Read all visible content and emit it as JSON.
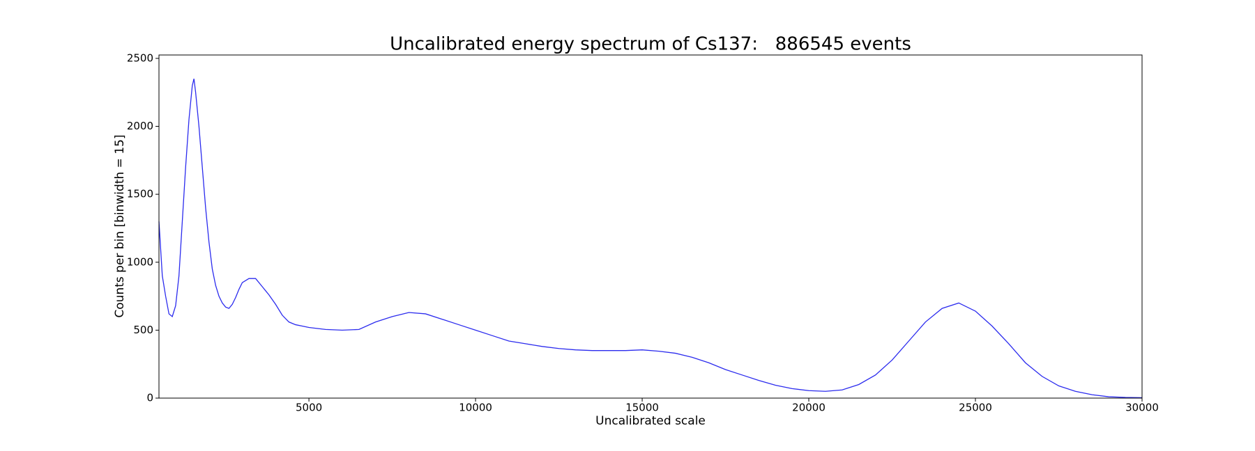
{
  "chart_data": {
    "type": "line",
    "title": "Uncalibrated energy spectrum of Cs137:   886545 events",
    "x_label": "Uncalibrated scale",
    "y_label": "Counts per bin [binwidth = 15]",
    "xlim": [
      500,
      30000
    ],
    "ylim": [
      0,
      2525
    ],
    "xticks": [
      5000,
      10000,
      15000,
      20000,
      25000,
      30000
    ],
    "yticks": [
      0,
      500,
      1000,
      1500,
      2000,
      2500
    ],
    "grid": false,
    "series": [
      {
        "name": "Cs137",
        "color": "#2b2bee",
        "x": [
          500,
          600,
          700,
          800,
          900,
          1000,
          1100,
          1200,
          1300,
          1400,
          1500,
          1550,
          1600,
          1700,
          1800,
          1900,
          2000,
          2100,
          2200,
          2300,
          2400,
          2500,
          2600,
          2700,
          2800,
          2900,
          3000,
          3200,
          3400,
          3600,
          3800,
          4000,
          4200,
          4400,
          4600,
          4800,
          5000,
          5500,
          6000,
          6500,
          7000,
          7500,
          8000,
          8500,
          9000,
          9500,
          10000,
          10500,
          11000,
          11500,
          12000,
          12500,
          13000,
          13500,
          14000,
          14500,
          15000,
          15500,
          16000,
          16500,
          17000,
          17500,
          18000,
          18500,
          19000,
          19500,
          20000,
          20500,
          21000,
          21500,
          22000,
          22500,
          23000,
          23500,
          24000,
          24500,
          25000,
          25500,
          26000,
          26500,
          27000,
          27500,
          28000,
          28500,
          29000,
          29500,
          30000
        ],
        "values": [
          1300,
          900,
          750,
          620,
          600,
          680,
          900,
          1300,
          1700,
          2050,
          2300,
          2350,
          2250,
          2000,
          1700,
          1400,
          1150,
          950,
          830,
          750,
          700,
          670,
          660,
          690,
          740,
          800,
          850,
          880,
          880,
          820,
          760,
          690,
          610,
          560,
          540,
          530,
          520,
          505,
          500,
          505,
          560,
          600,
          630,
          620,
          580,
          540,
          500,
          460,
          420,
          400,
          380,
          365,
          355,
          350,
          350,
          350,
          355,
          345,
          330,
          300,
          260,
          210,
          170,
          130,
          95,
          70,
          55,
          50,
          60,
          100,
          170,
          280,
          420,
          560,
          660,
          700,
          640,
          530,
          400,
          260,
          160,
          90,
          50,
          25,
          10,
          5,
          3
        ]
      }
    ]
  }
}
